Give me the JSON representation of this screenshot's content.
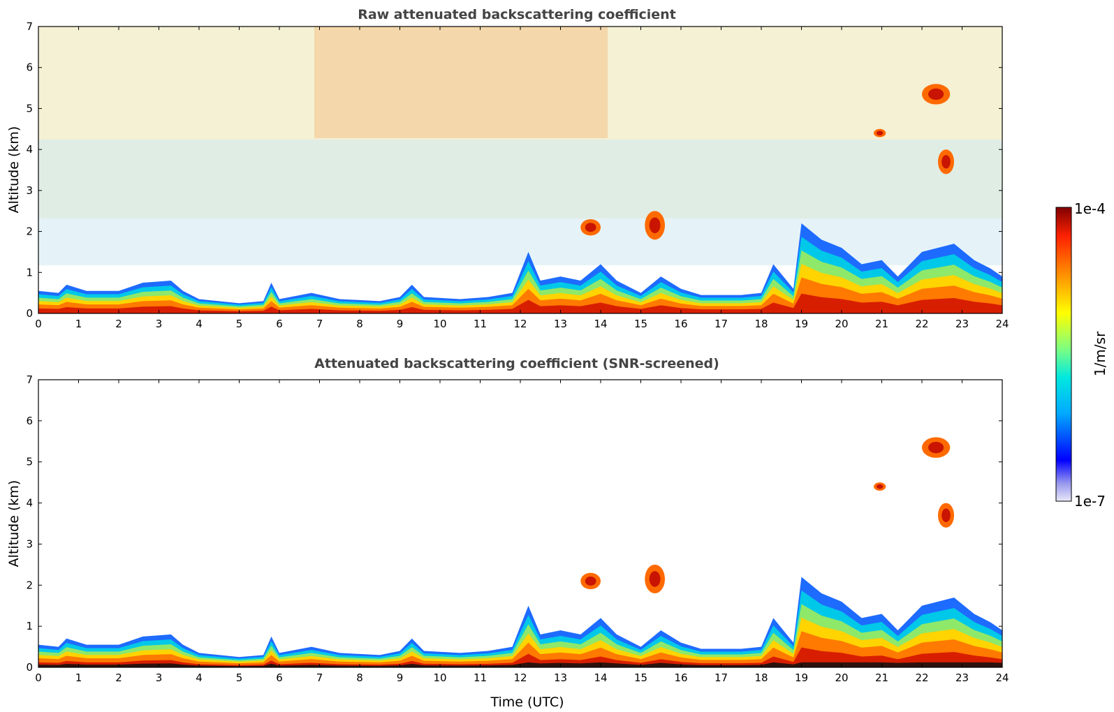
{
  "chart_data": [
    {
      "type": "heatmap",
      "title": "Raw attenuated backscattering coefficient",
      "xlabel": "",
      "ylabel": "Altitude (km)",
      "xlim": [
        0,
        24
      ],
      "ylim": [
        0,
        7
      ],
      "xticks": [
        0,
        1,
        2,
        3,
        4,
        5,
        6,
        7,
        8,
        9,
        10,
        11,
        12,
        13,
        14,
        15,
        16,
        17,
        18,
        19,
        20,
        21,
        22,
        23,
        24
      ],
      "yticks": [
        0,
        1,
        2,
        3,
        4,
        5,
        6,
        7
      ],
      "boundary_layer_top_km": [
        [
          0,
          0.55
        ],
        [
          0.5,
          0.5
        ],
        [
          0.7,
          0.7
        ],
        [
          1.2,
          0.55
        ],
        [
          2.0,
          0.55
        ],
        [
          2.3,
          0.65
        ],
        [
          2.6,
          0.75
        ],
        [
          3.3,
          0.8
        ],
        [
          3.6,
          0.55
        ],
        [
          4.0,
          0.35
        ],
        [
          5.0,
          0.25
        ],
        [
          5.6,
          0.3
        ],
        [
          5.8,
          0.75
        ],
        [
          6.0,
          0.35
        ],
        [
          6.8,
          0.5
        ],
        [
          7.5,
          0.35
        ],
        [
          8.5,
          0.3
        ],
        [
          9.0,
          0.4
        ],
        [
          9.3,
          0.7
        ],
        [
          9.6,
          0.4
        ],
        [
          10.5,
          0.35
        ],
        [
          11.2,
          0.4
        ],
        [
          11.8,
          0.5
        ],
        [
          12.2,
          1.5
        ],
        [
          12.5,
          0.8
        ],
        [
          13.0,
          0.9
        ],
        [
          13.5,
          0.8
        ],
        [
          14.0,
          1.2
        ],
        [
          14.4,
          0.8
        ],
        [
          15.0,
          0.5
        ],
        [
          15.5,
          0.9
        ],
        [
          16.0,
          0.6
        ],
        [
          16.5,
          0.45
        ],
        [
          17.5,
          0.45
        ],
        [
          18.0,
          0.5
        ],
        [
          18.3,
          1.2
        ],
        [
          18.8,
          0.6
        ],
        [
          19.0,
          2.2
        ],
        [
          19.5,
          1.8
        ],
        [
          20.0,
          1.6
        ],
        [
          20.5,
          1.2
        ],
        [
          21.0,
          1.3
        ],
        [
          21.4,
          0.9
        ],
        [
          22.0,
          1.5
        ],
        [
          22.8,
          1.7
        ],
        [
          23.3,
          1.3
        ],
        [
          23.7,
          1.1
        ],
        [
          24,
          0.9
        ]
      ],
      "features": [
        {
          "kind": "cloud",
          "x": [
            22.0,
            22.7
          ],
          "y": [
            5.1,
            5.6
          ]
        },
        {
          "kind": "cloud",
          "x": [
            22.4,
            22.8
          ],
          "y": [
            3.4,
            4.0
          ]
        },
        {
          "kind": "cloud",
          "x": [
            15.1,
            15.6
          ],
          "y": [
            1.8,
            2.5
          ]
        },
        {
          "kind": "cloud",
          "x": [
            13.5,
            14.0
          ],
          "y": [
            1.9,
            2.3
          ]
        },
        {
          "kind": "cloud",
          "x": [
            20.8,
            21.1
          ],
          "y": [
            4.3,
            4.5
          ]
        }
      ]
    },
    {
      "type": "heatmap",
      "title": "Attenuated backscattering coefficient (SNR-screened)",
      "xlabel": "Time (UTC)",
      "ylabel": "Altitude (km)",
      "xlim": [
        0,
        24
      ],
      "ylim": [
        0,
        7
      ],
      "xticks": [
        0,
        1,
        2,
        3,
        4,
        5,
        6,
        7,
        8,
        9,
        10,
        11,
        12,
        13,
        14,
        15,
        16,
        17,
        18,
        19,
        20,
        21,
        22,
        23,
        24
      ],
      "yticks": [
        0,
        1,
        2,
        3,
        4,
        5,
        6,
        7
      ],
      "boundary_layer_top_km": [
        [
          0,
          0.55
        ],
        [
          0.5,
          0.5
        ],
        [
          0.7,
          0.7
        ],
        [
          1.2,
          0.55
        ],
        [
          2.0,
          0.55
        ],
        [
          2.3,
          0.65
        ],
        [
          2.6,
          0.75
        ],
        [
          3.3,
          0.8
        ],
        [
          3.6,
          0.55
        ],
        [
          4.0,
          0.35
        ],
        [
          5.0,
          0.25
        ],
        [
          5.6,
          0.3
        ],
        [
          5.8,
          0.75
        ],
        [
          6.0,
          0.35
        ],
        [
          6.8,
          0.5
        ],
        [
          7.5,
          0.35
        ],
        [
          8.5,
          0.3
        ],
        [
          9.0,
          0.4
        ],
        [
          9.3,
          0.7
        ],
        [
          9.6,
          0.4
        ],
        [
          10.5,
          0.35
        ],
        [
          11.2,
          0.4
        ],
        [
          11.8,
          0.5
        ],
        [
          12.2,
          1.5
        ],
        [
          12.5,
          0.8
        ],
        [
          13.0,
          0.9
        ],
        [
          13.5,
          0.8
        ],
        [
          14.0,
          1.2
        ],
        [
          14.4,
          0.8
        ],
        [
          15.0,
          0.5
        ],
        [
          15.5,
          0.9
        ],
        [
          16.0,
          0.6
        ],
        [
          16.5,
          0.45
        ],
        [
          17.5,
          0.45
        ],
        [
          18.0,
          0.5
        ],
        [
          18.3,
          1.2
        ],
        [
          18.8,
          0.6
        ],
        [
          19.0,
          2.2
        ],
        [
          19.5,
          1.8
        ],
        [
          20.0,
          1.6
        ],
        [
          20.5,
          1.2
        ],
        [
          21.0,
          1.3
        ],
        [
          21.4,
          0.9
        ],
        [
          22.0,
          1.5
        ],
        [
          22.8,
          1.7
        ],
        [
          23.3,
          1.3
        ],
        [
          23.7,
          1.1
        ],
        [
          24,
          0.9
        ]
      ],
      "features": [
        {
          "kind": "cloud",
          "x": [
            22.0,
            22.7
          ],
          "y": [
            5.1,
            5.6
          ]
        },
        {
          "kind": "cloud",
          "x": [
            22.4,
            22.8
          ],
          "y": [
            3.4,
            4.0
          ]
        },
        {
          "kind": "cloud",
          "x": [
            15.1,
            15.6
          ],
          "y": [
            1.8,
            2.5
          ]
        },
        {
          "kind": "cloud",
          "x": [
            13.5,
            14.0
          ],
          "y": [
            1.9,
            2.3
          ]
        },
        {
          "kind": "cloud",
          "x": [
            20.8,
            21.1
          ],
          "y": [
            4.3,
            4.5
          ]
        }
      ]
    }
  ],
  "colorbar": {
    "label": "1/m/sr",
    "max_label": "1e-4",
    "min_label": "1e-7",
    "colormap": [
      "#e8e8f8",
      "#9999ee",
      "#0000ff",
      "#00aaff",
      "#00e8e0",
      "#7fff7f",
      "#ffff00",
      "#ff8800",
      "#ff2200",
      "#800000"
    ]
  }
}
